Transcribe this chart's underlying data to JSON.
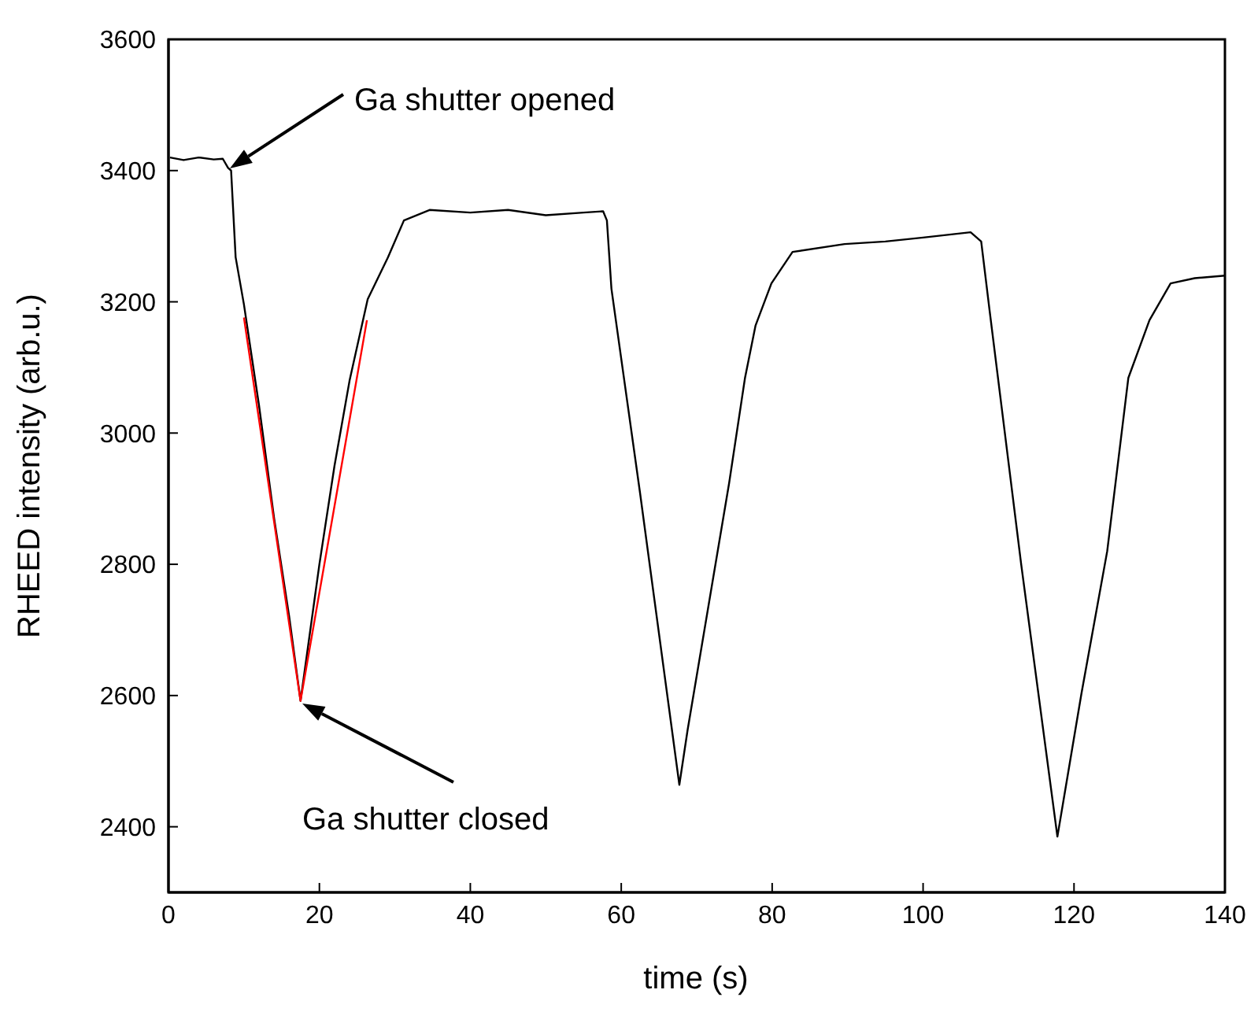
{
  "chart_data": {
    "type": "line",
    "xlabel": "time (s)",
    "ylabel": "RHEED intensity (arb.u.)",
    "xlim": [
      0,
      140
    ],
    "ylim": [
      2300,
      3600
    ],
    "xticks": [
      0,
      20,
      40,
      60,
      80,
      100,
      120,
      140
    ],
    "yticks": [
      2400,
      2600,
      2800,
      3000,
      3200,
      3400,
      3600
    ],
    "series": [
      {
        "color": "#000000",
        "x": [
          0.2,
          2,
          4,
          6,
          7.2,
          7.9,
          8.3,
          8.9,
          10,
          12,
          14,
          16,
          17.5,
          20,
          22,
          24,
          26.4,
          29.1,
          31.2,
          34.6,
          40,
          45,
          50,
          55,
          57.6,
          58.1,
          58.7,
          62.5,
          67.7,
          68.8,
          74.3,
          76.4,
          77.8,
          79.9,
          82.7,
          89.6,
          95,
          100,
          106.3,
          107.7,
          108.8,
          113,
          117.8,
          121,
          124.4,
          127.2,
          130,
          132.8,
          136,
          140
        ],
        "values": [
          3420,
          3416,
          3420,
          3417,
          3418,
          3404,
          3400,
          3268,
          3196,
          3042,
          2870,
          2720,
          2592,
          2800,
          2950,
          3080,
          3204,
          3268,
          3324,
          3340,
          3336,
          3340,
          3332,
          3336,
          3338,
          3324,
          3220,
          2908,
          2464,
          2548,
          2924,
          3084,
          3164,
          3228,
          3276,
          3288,
          3292,
          3298,
          3306,
          3292,
          3188,
          2800,
          2385,
          2604,
          2820,
          3084,
          3172,
          3228,
          3236,
          3240
        ]
      },
      {
        "color": "#ff0000",
        "x": [
          10,
          17.5,
          26.3
        ],
        "values": [
          3176,
          2592,
          3172
        ]
      }
    ],
    "annotations": [
      "Ga shutter opened",
      "Ga shutter closed"
    ]
  }
}
